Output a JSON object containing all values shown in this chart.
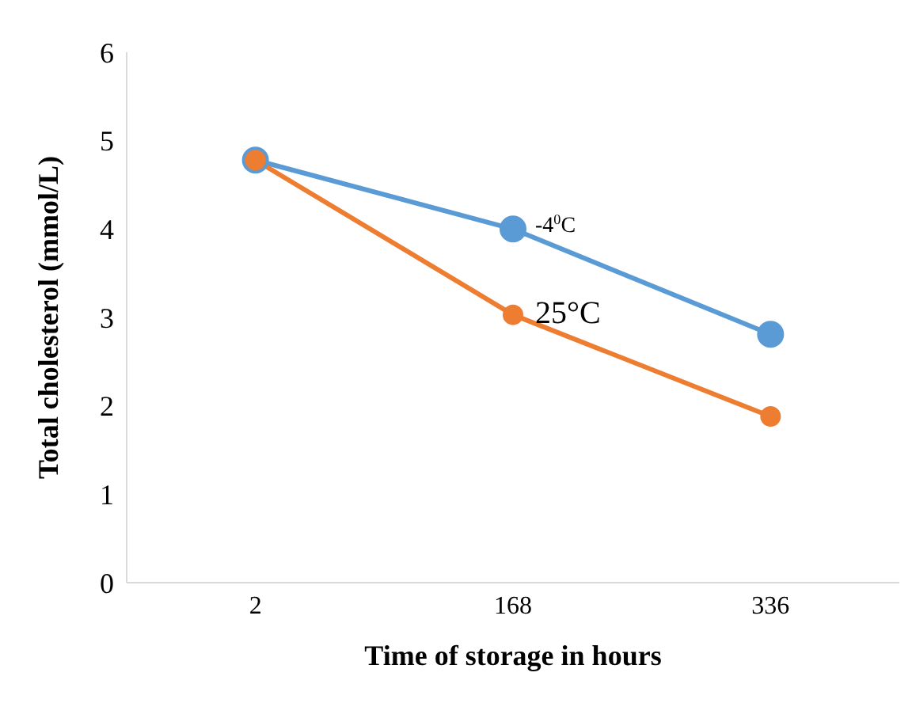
{
  "chart_data": {
    "type": "line",
    "xlabel": "Time of storage in hours",
    "ylabel": "Total  cholesterol (mmol/L)",
    "categories": [
      "2",
      "168",
      "336"
    ],
    "series": [
      {
        "name": "-4$^{0}$C",
        "color": "#5b9bd5",
        "values": [
          4.78,
          4.0,
          2.81
        ]
      },
      {
        "name": "25°C",
        "color": "#ed7d31",
        "values": [
          4.78,
          3.03,
          1.88
        ]
      }
    ],
    "ylim": [
      0,
      6
    ],
    "yticks": [
      0,
      1,
      2,
      3,
      4,
      5,
      6
    ],
    "grid": false,
    "legend": false,
    "marker": "circle",
    "line_style": "solid"
  }
}
